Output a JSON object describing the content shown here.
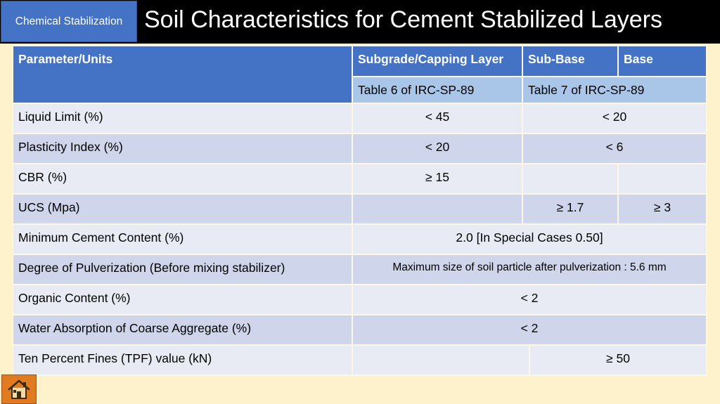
{
  "header": {
    "tag": "Chemical Stabilization",
    "title": "Soil Characteristics for Cement Stabilized Layers"
  },
  "table": {
    "headers": {
      "param": "Parameter/Units",
      "subgrade": "Subgrade/Capping Layer",
      "subbase": "Sub-Base",
      "base": "Base"
    },
    "refs": {
      "subgrade": "Table 6 of IRC-SP-89",
      "subbase_base": "Table 7 of IRC-SP-89"
    },
    "rows": [
      {
        "param": "Liquid Limit (%)",
        "subgrade": "< 45",
        "subbase_base": "< 20"
      },
      {
        "param": "Plasticity Index (%)",
        "subgrade": "< 20",
        "subbase_base": "< 6"
      },
      {
        "param": "CBR (%)",
        "subgrade": "≥ 15",
        "subbase": "",
        "base": ""
      },
      {
        "param": "UCS (Mpa)",
        "subgrade": "",
        "subbase": "≥ 1.7",
        "base": "≥ 3"
      },
      {
        "param": "Minimum Cement Content (%)",
        "all": "2.0 [In Special Cases 0.50]"
      },
      {
        "param": "Degree of Pulverization  (Before mixing stabilizer)",
        "all": "Maximum size of soil particle after pulverization : 5.6 mm"
      },
      {
        "param": "Organic Content (%)",
        "all": "< 2"
      },
      {
        "param": "Water Absorption of Coarse Aggregate (%)",
        "all": "< 2"
      },
      {
        "param": "Ten Percent Fines (TPF) value (kN)",
        "subgrade": "",
        "subbase_base": "≥ 50"
      }
    ]
  },
  "nav": {
    "home_icon": "home-icon"
  },
  "colors": {
    "background": "#fdf2cc",
    "header": "#000000",
    "accent": "#4472c4",
    "subheader": "#a9c6e8",
    "row_light": "#e8ebf4",
    "row_dark": "#cfd5ea",
    "home_button": "#e07b22"
  }
}
